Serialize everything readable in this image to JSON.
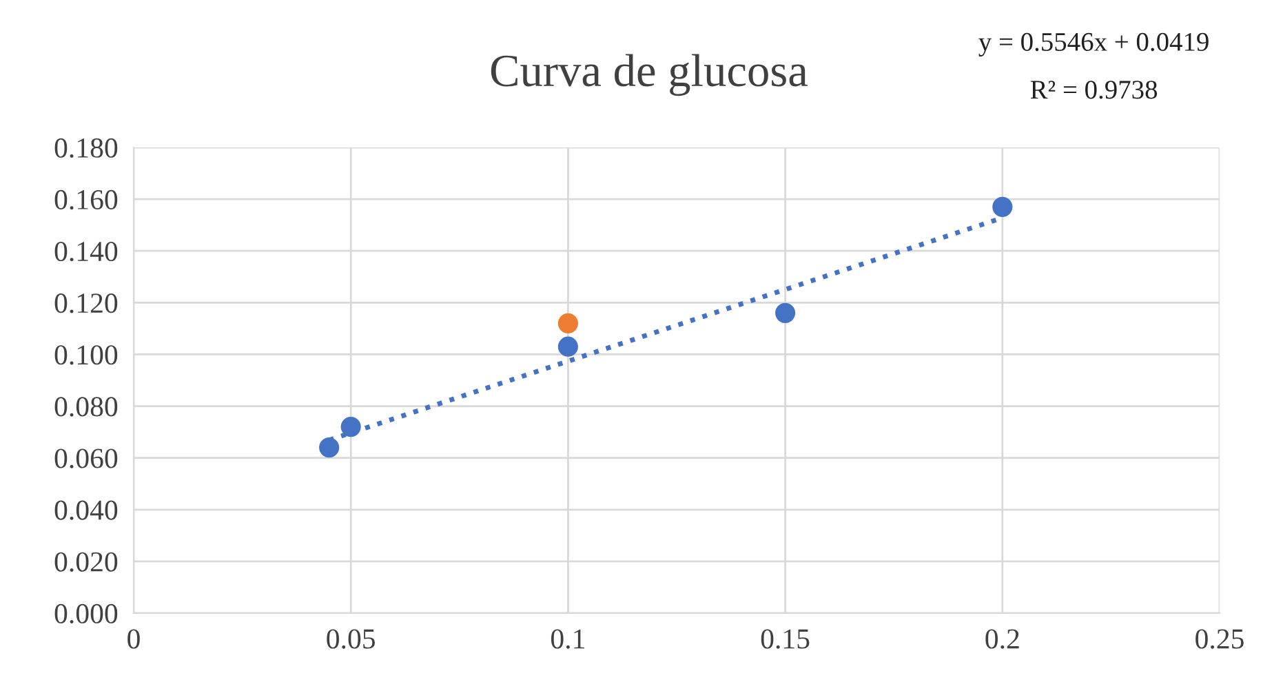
{
  "chart_data": {
    "type": "scatter",
    "title": "Curva de glucosa",
    "series": [
      {
        "color": "#4472c4",
        "x": [
          0.045,
          0.05,
          0.1,
          0.15,
          0.2
        ],
        "values": [
          0.064,
          0.072,
          0.103,
          0.116,
          0.157
        ],
        "marker": "circle"
      },
      {
        "color": "#ed7d31",
        "x": [
          0.1
        ],
        "values": [
          0.112
        ],
        "marker": "circle"
      },
      {
        "type": "line",
        "color": "#4472c4",
        "x": [
          0.045,
          0.2
        ],
        "values": [
          0.0669,
          0.1528
        ],
        "line_style": "dotted",
        "marker": "none"
      }
    ],
    "xlim": [
      0,
      0.25
    ],
    "xticks": [
      0,
      {
        "value": 0.05,
        "label": "0.05"
      },
      {
        "value": 0.1,
        "label": "0.1"
      },
      {
        "value": 0.15,
        "label": "0.15"
      },
      {
        "value": 0.2,
        "label": "0.2"
      },
      {
        "value": 0.25,
        "label": "0.25"
      }
    ],
    "ylim": [
      0,
      0.18
    ],
    "yticks": [
      {
        "value": 0,
        "label": "0.000"
      },
      {
        "value": 0.02,
        "label": "0.020"
      },
      {
        "value": 0.04,
        "label": "0.040"
      },
      {
        "value": 0.06,
        "label": "0.060"
      },
      {
        "value": 0.08,
        "label": "0.080"
      },
      {
        "value": 0.1,
        "label": "0.100"
      },
      {
        "value": 0.12,
        "label": "0.120"
      },
      {
        "value": 0.14,
        "label": "0.140"
      },
      {
        "value": 0.16,
        "label": "0.160"
      },
      {
        "value": 0.18,
        "label": "0.180"
      }
    ],
    "grid": true,
    "annotations": [
      "y = 0.5546x + 0.0419",
      "R² = 0.9738"
    ]
  }
}
